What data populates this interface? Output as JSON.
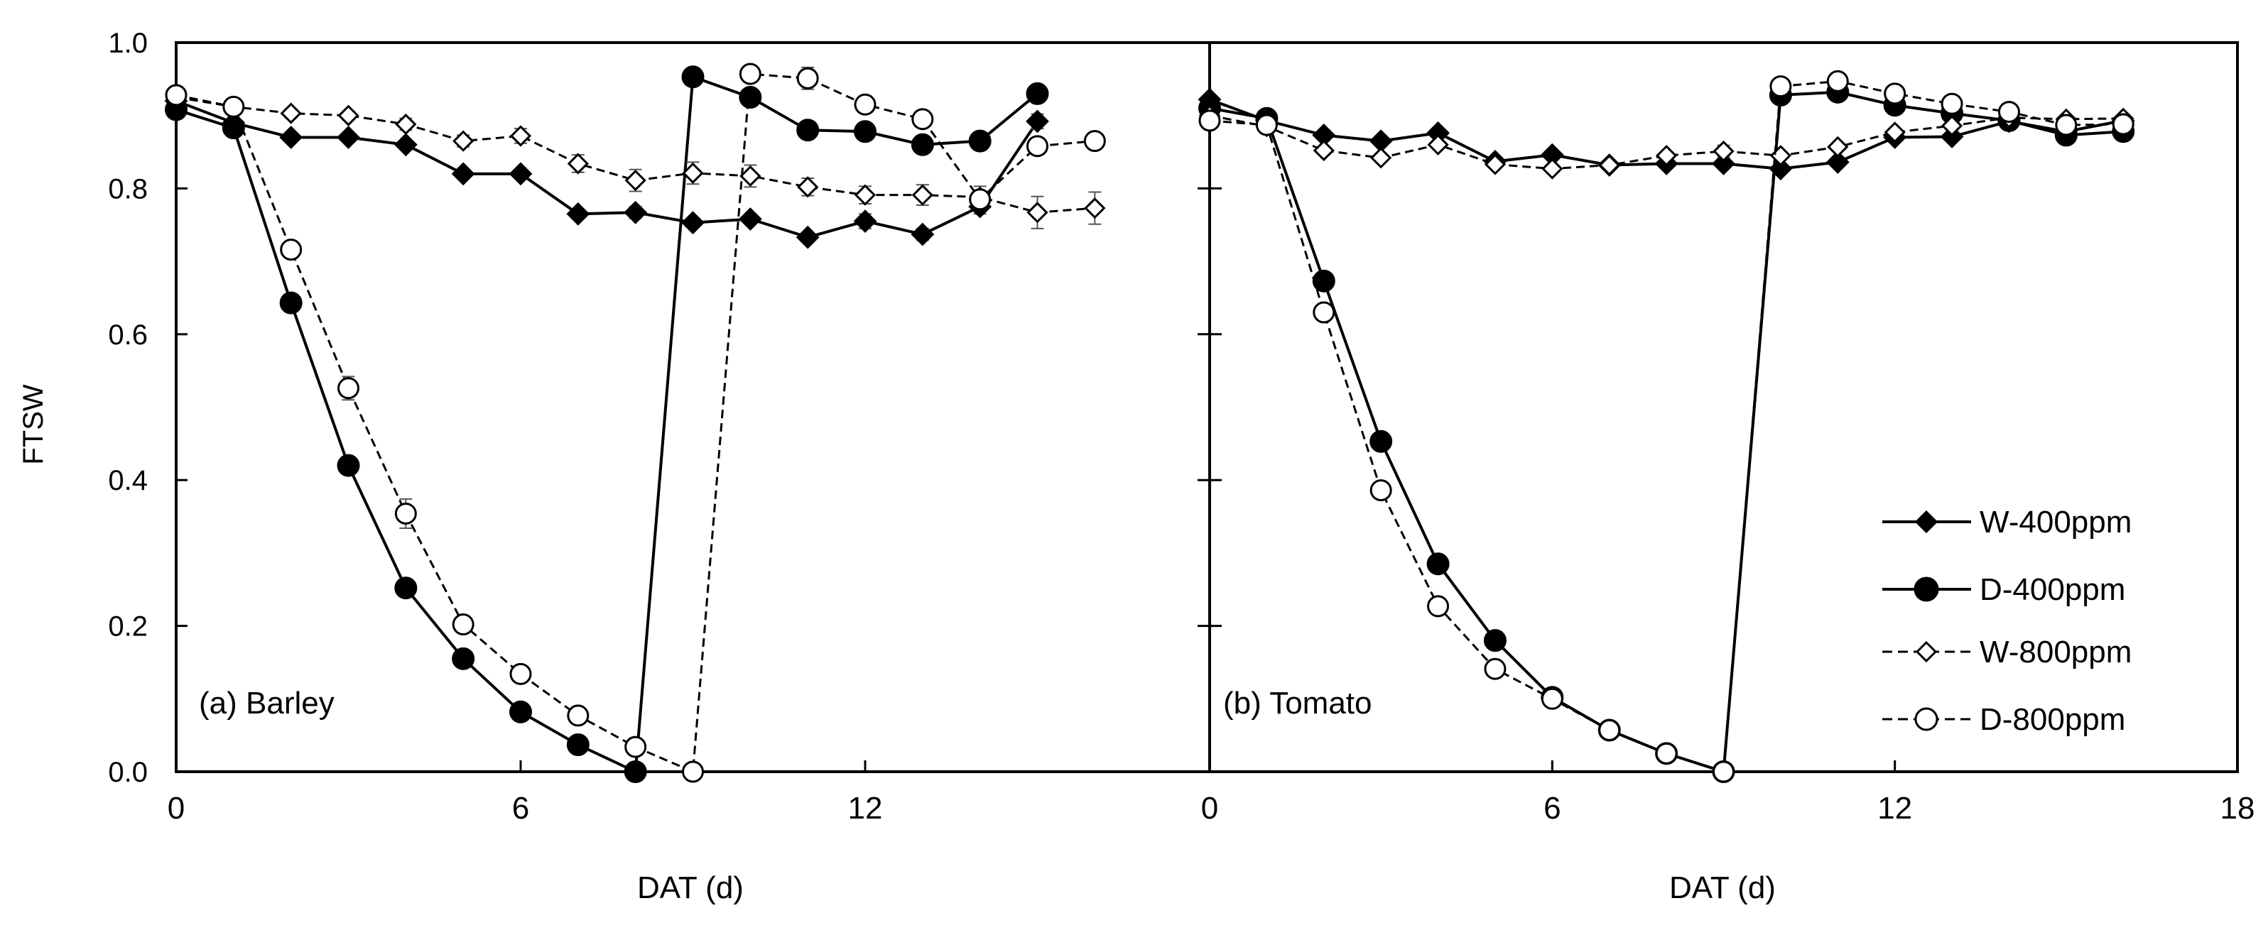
{
  "chart_data": {
    "type": "line",
    "ylabel": "FTSW",
    "ylim": [
      0,
      1
    ],
    "yticks": [
      "0.0",
      "0.2",
      "0.4",
      "0.6",
      "0.8",
      "1.0"
    ],
    "ytick_values": [
      0,
      0.2,
      0.4,
      0.6,
      0.8,
      1.0
    ],
    "legend": {
      "placement": "bottom-right of panel (b)",
      "entries": [
        {
          "label": "W-400ppm",
          "marker": "diamond-filled",
          "dash": "solid"
        },
        {
          "label": "D-400ppm",
          "marker": "circle-filled",
          "dash": "solid"
        },
        {
          "label": "W-800ppm",
          "marker": "diamond-open",
          "dash": "dashed"
        },
        {
          "label": "D-800ppm",
          "marker": "circle-open",
          "dash": "dashed"
        }
      ]
    },
    "panels": [
      {
        "label": "(a) Barley",
        "xlabel": "DAT (d)",
        "xlim": [
          0,
          18
        ],
        "xtick_labels": [
          "0",
          "6",
          "12"
        ],
        "xtick_values": [
          0,
          6,
          12
        ],
        "series": [
          {
            "name": "W-400ppm",
            "marker": "diamond-filled",
            "dash": "solid",
            "x": [
              0,
              1,
              2,
              3,
              4,
              5,
              6,
              7,
              8,
              9,
              10,
              11,
              12,
              13,
              14,
              15
            ],
            "y": [
              0.92,
              0.89,
              0.87,
              0.87,
              0.86,
              0.82,
              0.82,
              0.765,
              0.767,
              0.753,
              0.758,
              0.733,
              0.755,
              0.737,
              0.775,
              0.892
            ],
            "err": [
              0.005,
              0.005,
              0.005,
              0.005,
              0.005,
              0.005,
              0.005,
              0.005,
              0.008,
              0.006,
              0.006,
              0.006,
              0.01,
              0.008,
              0.01,
              0.01
            ]
          },
          {
            "name": "D-400ppm",
            "marker": "circle-filled",
            "dash": "solid",
            "x": [
              0,
              1,
              2,
              3,
              4,
              5,
              6,
              7,
              8,
              9,
              10,
              11,
              12,
              13,
              14,
              15
            ],
            "y": [
              0.908,
              0.883,
              0.643,
              0.42,
              0.252,
              0.155,
              0.082,
              0.037,
              0.0,
              0.953,
              0.925,
              0.88,
              0.878,
              0.86,
              0.865,
              0.93
            ],
            "err": [
              0.005,
              0.005,
              0.008,
              0.008,
              0.006,
              0.005,
              0.005,
              0.004,
              0,
              0.006,
              0.008,
              0.006,
              0.006,
              0.006,
              0.006,
              0.006
            ]
          },
          {
            "name": "W-800ppm",
            "marker": "diamond-open",
            "dash": "dashed",
            "x": [
              0,
              1,
              2,
              3,
              4,
              5,
              6,
              7,
              8,
              9,
              10,
              11,
              12,
              13,
              14,
              15,
              16
            ],
            "y": [
              0.925,
              0.912,
              0.903,
              0.9,
              0.888,
              0.865,
              0.872,
              0.834,
              0.811,
              0.821,
              0.817,
              0.802,
              0.791,
              0.791,
              0.788,
              0.767,
              0.773
            ],
            "err": [
              0.005,
              0.006,
              0.006,
              0.006,
              0.008,
              0.008,
              0.01,
              0.012,
              0.015,
              0.015,
              0.015,
              0.012,
              0.012,
              0.014,
              0.015,
              0.022,
              0.022
            ]
          },
          {
            "name": "D-800ppm",
            "marker": "circle-open",
            "dash": "dashed",
            "x": [
              0,
              1,
              2,
              3,
              4,
              5,
              6,
              7,
              8,
              9,
              10,
              11,
              12,
              13,
              14,
              15,
              16
            ],
            "y": [
              0.928,
              0.912,
              0.716,
              0.526,
              0.354,
              0.202,
              0.134,
              0.077,
              0.034,
              0.0,
              0.957,
              0.951,
              0.915,
              0.895,
              0.785,
              0.858,
              0.865
            ],
            "err": [
              0.005,
              0.006,
              0.01,
              0.016,
              0.02,
              0.01,
              0.006,
              0.005,
              0.005,
              0,
              0.006,
              0.015,
              0.006,
              0.008,
              0.01,
              0.01,
              0.006
            ]
          }
        ]
      },
      {
        "label": "(b) Tomato",
        "xlabel": "DAT (d)",
        "xlim": [
          0,
          18
        ],
        "xtick_labels": [
          "0",
          "6",
          "12",
          "18"
        ],
        "xtick_values": [
          0,
          6,
          12,
          18
        ],
        "series": [
          {
            "name": "W-400ppm",
            "marker": "diamond-filled",
            "dash": "solid",
            "x": [
              0,
              1,
              2,
              3,
              4,
              5,
              6,
              7,
              8,
              9,
              10,
              11,
              12,
              13,
              14,
              15,
              16
            ],
            "y": [
              0.922,
              0.893,
              0.873,
              0.865,
              0.876,
              0.837,
              0.846,
              0.832,
              0.834,
              0.834,
              0.827,
              0.836,
              0.87,
              0.871,
              0.892,
              0.878,
              0.893
            ],
            "err": [
              0.005,
              0.005,
              0.005,
              0.005,
              0.005,
              0.005,
              0.005,
              0.005,
              0.005,
              0.005,
              0.005,
              0.005,
              0.005,
              0.005,
              0.005,
              0.005,
              0.005
            ]
          },
          {
            "name": "D-400ppm",
            "marker": "circle-filled",
            "dash": "solid",
            "x": [
              0,
              1,
              2,
              3,
              4,
              5,
              6,
              7,
              8,
              9,
              10,
              11,
              12,
              13,
              14,
              15,
              16
            ],
            "y": [
              0.91,
              0.896,
              0.673,
              0.453,
              0.285,
              0.18,
              0.102,
              0.057,
              0.025,
              0.0,
              0.928,
              0.932,
              0.914,
              0.903,
              0.893,
              0.873,
              0.878
            ],
            "err": [
              0.005,
              0.005,
              0.005,
              0.005,
              0.005,
              0.005,
              0.005,
              0.005,
              0.005,
              0,
              0.005,
              0.005,
              0.005,
              0.005,
              0.005,
              0.005,
              0.005
            ]
          },
          {
            "name": "W-800ppm",
            "marker": "diamond-open",
            "dash": "dashed",
            "x": [
              0,
              1,
              2,
              3,
              4,
              5,
              6,
              7,
              8,
              9,
              10,
              11,
              12,
              13,
              14,
              15,
              16
            ],
            "y": [
              0.9,
              0.885,
              0.852,
              0.842,
              0.86,
              0.833,
              0.827,
              0.832,
              0.845,
              0.851,
              0.845,
              0.857,
              0.877,
              0.886,
              0.897,
              0.895,
              0.896
            ],
            "err": [
              0.005,
              0.005,
              0.005,
              0.005,
              0.005,
              0.005,
              0.005,
              0.005,
              0.005,
              0.008,
              0.005,
              0.005,
              0.005,
              0.005,
              0.005,
              0.005,
              0.005
            ]
          },
          {
            "name": "D-800ppm",
            "marker": "circle-open",
            "dash": "dashed",
            "x": [
              0,
              1,
              2,
              3,
              4,
              5,
              6,
              7,
              8,
              9,
              10,
              11,
              12,
              13,
              14,
              15,
              16
            ],
            "y": [
              0.893,
              0.887,
              0.63,
              0.386,
              0.227,
              0.141,
              0.1,
              0.057,
              0.025,
              0.0,
              0.94,
              0.947,
              0.93,
              0.916,
              0.905,
              0.887,
              0.888
            ],
            "err": [
              0.005,
              0.005,
              0.005,
              0.005,
              0.005,
              0.005,
              0.005,
              0.005,
              0.005,
              0,
              0.005,
              0.005,
              0.005,
              0.005,
              0.005,
              0.005,
              0.005
            ]
          }
        ]
      }
    ]
  }
}
